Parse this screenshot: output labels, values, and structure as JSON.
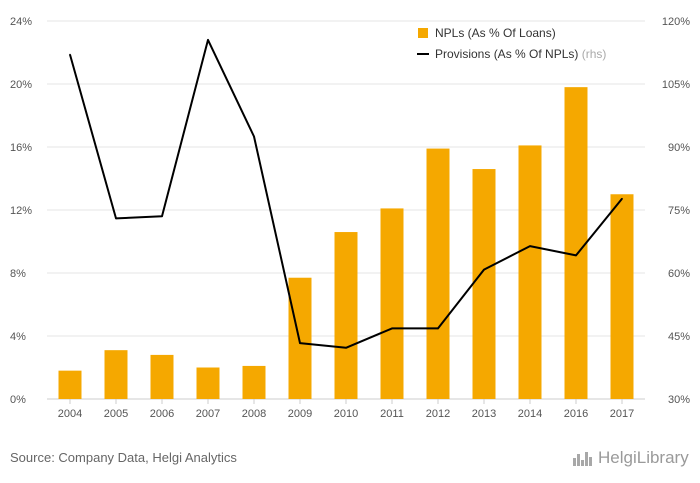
{
  "chart_data": {
    "type": "bar",
    "categories": [
      "2004",
      "2005",
      "2006",
      "2007",
      "2008",
      "2009",
      "2010",
      "2011",
      "2012",
      "2013",
      "2014",
      "2016",
      "2017"
    ],
    "series": [
      {
        "name": "NPLs (As % Of Loans)",
        "type": "bar",
        "axis": "left",
        "values": [
          1.8,
          3.1,
          2.8,
          2.0,
          2.1,
          7.7,
          10.6,
          12.1,
          15.9,
          14.6,
          16.1,
          19.8,
          13.0
        ],
        "color": "#f5a800"
      },
      {
        "name": "Provisions (As % Of NPLs)",
        "type": "line",
        "axis": "right",
        "legend_suffix": "(rhs)",
        "values": [
          112,
          73,
          73.5,
          115.5,
          92.5,
          43.3,
          42.2,
          46.8,
          46.8,
          60.8,
          66.4,
          64.2,
          77.7
        ],
        "color": "#000000"
      }
    ],
    "y_left": {
      "min": 0,
      "max": 24,
      "ticks": [
        "0%",
        "4%",
        "8%",
        "12%",
        "16%",
        "20%",
        "24%"
      ]
    },
    "y_right": {
      "min": 30,
      "max": 120,
      "ticks": [
        "30%",
        "45%",
        "60%",
        "75%",
        "90%",
        "105%",
        "120%"
      ]
    },
    "grid": true,
    "legend_position": "top-right"
  },
  "footer": {
    "source": "Source: Company Data, Helgi Analytics",
    "brand": "HelgiLibrary"
  }
}
